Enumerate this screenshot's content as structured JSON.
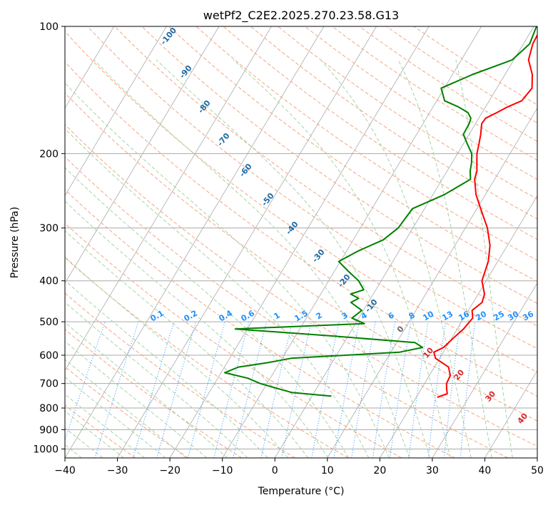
{
  "chart_data": {
    "type": "line",
    "title": "wetPf2_C2E2.2025.270.23.58.G13",
    "xlabel": "Temperature (°C)",
    "ylabel": "Pressure (hPa)",
    "xlim": [
      -40,
      50
    ],
    "ylim": [
      1050,
      100
    ],
    "y_scale": "log",
    "grid": true,
    "x_ticks": [
      -40,
      -30,
      -20,
      -10,
      0,
      10,
      20,
      30,
      40,
      50
    ],
    "y_ticks": [
      100,
      200,
      300,
      400,
      500,
      600,
      700,
      800,
      900,
      1000
    ],
    "mixing_ratio_labels": [
      "0.1",
      "0.2",
      "0.4",
      "0.6",
      "1",
      "1.5",
      "2",
      "3",
      "4",
      "6",
      "8",
      "10",
      "13",
      "16",
      "20",
      "25",
      "30",
      "36"
    ],
    "dry_adiabat_labels": [
      "-100",
      "-90",
      "-80",
      "-70",
      "-60",
      "-50",
      "-40",
      "-30",
      "-20",
      "-10",
      "0"
    ],
    "moist_adiabat_labels": [
      "10",
      "20",
      "30",
      "40"
    ],
    "colors": {
      "temperature": "#ff0000",
      "dewpoint": "#008000",
      "isotherm": "#aaaaaa",
      "dry_adiabat": "#f4a582",
      "moist_adiabat": "#a6d4a6",
      "mixing_ratio": "#1e90ff",
      "dry_label": "#1f6aa5",
      "moist_label": "#d62728",
      "mixing_label": "#1e90ff"
    },
    "series": [
      {
        "key": "temperature",
        "p": [
          100,
          110,
          120,
          130,
          140,
          150,
          155,
          160,
          165,
          170,
          180,
          190,
          200,
          210,
          220,
          230,
          250,
          270,
          300,
          330,
          360,
          400,
          430,
          450,
          470,
          490,
          520,
          550,
          575,
          590,
          610,
          640,
          670,
          700,
          720,
          740,
          755
        ],
        "t": [
          1.5,
          1.8,
          2.8,
          5.2,
          6.7,
          6.2,
          4.2,
          2.8,
          1.3,
          1.2,
          2.2,
          3.0,
          3.7,
          4.7,
          5.7,
          6.2,
          8.2,
          10.7,
          14.2,
          16.7,
          18.2,
          19.2,
          21.2,
          21.7,
          20.7,
          21.7,
          21.2,
          20.2,
          19.5,
          18.2,
          19.2,
          22.7,
          24.0,
          24.2,
          24.8,
          25.5,
          24.0
        ]
      },
      {
        "key": "dewpoint",
        "p": [
          100,
          110,
          120,
          130,
          140,
          150,
          155,
          160,
          165,
          170,
          180,
          190,
          200,
          210,
          220,
          230,
          250,
          270,
          300,
          320,
          340,
          360,
          380,
          400,
          420,
          430,
          440,
          450,
          470,
          490,
          505,
          520,
          540,
          560,
          575,
          590,
          610,
          625,
          640,
          660,
          680,
          700,
          720,
          735,
          750
        ],
        "t": [
          0.5,
          1.2,
          -0.3,
          -6.2,
          -10.6,
          -8.5,
          -5.2,
          -2.7,
          -1.5,
          -1.2,
          -1.1,
          0.8,
          2.7,
          3.7,
          4.4,
          5.4,
          2.2,
          -2.3,
          -2.8,
          -4.3,
          -7.8,
          -10.3,
          -7.3,
          -4.3,
          -2.3,
          -4.3,
          -2.3,
          -3.3,
          -0.3,
          -1.3,
          1.7,
          -22.3,
          -3.3,
          13.5,
          15.5,
          11.7,
          -8.3,
          -12.3,
          -17.3,
          -19.3,
          -14.3,
          -11.3,
          -7.3,
          -4.3,
          3.7
        ]
      }
    ]
  }
}
